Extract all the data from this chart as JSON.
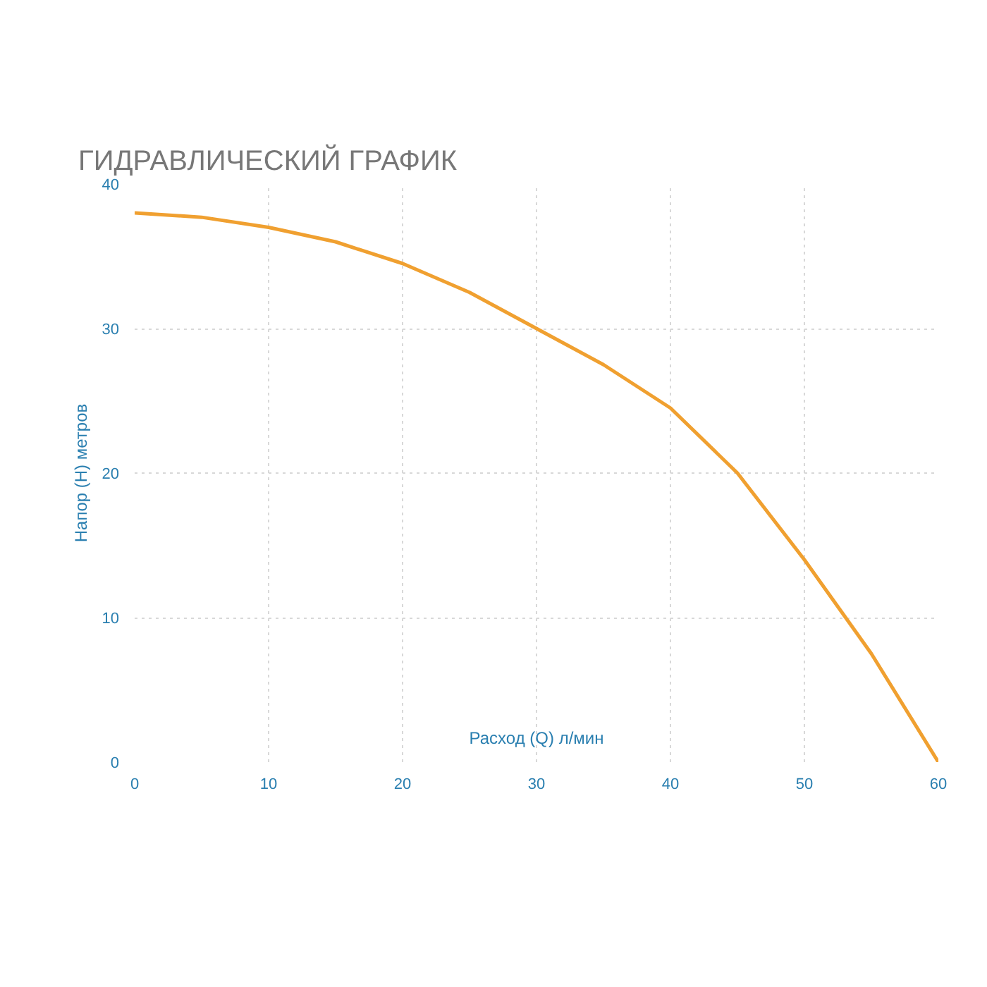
{
  "chart_data": {
    "type": "line",
    "title": "ГИДРАВЛИЧЕСКИЙ ГРАФИК",
    "xlabel": "Расход (Q) л/мин",
    "ylabel": "Напор (Н) метров",
    "x": [
      0,
      5,
      10,
      15,
      20,
      25,
      30,
      35,
      40,
      45,
      50,
      55,
      60
    ],
    "series": [
      {
        "color": "#f0a030",
        "values": [
          38,
          37.7,
          37,
          36,
          34.5,
          32.5,
          30,
          27.5,
          24.5,
          20,
          14,
          7.5,
          0
        ]
      }
    ],
    "xlim": [
      0,
      60
    ],
    "ylim": [
      0,
      40
    ],
    "xticks": [
      0,
      10,
      20,
      30,
      40,
      50,
      60
    ],
    "yticks": [
      0,
      10,
      20,
      30,
      40
    ],
    "grid": true,
    "marker": "none",
    "line_style": "solid"
  }
}
